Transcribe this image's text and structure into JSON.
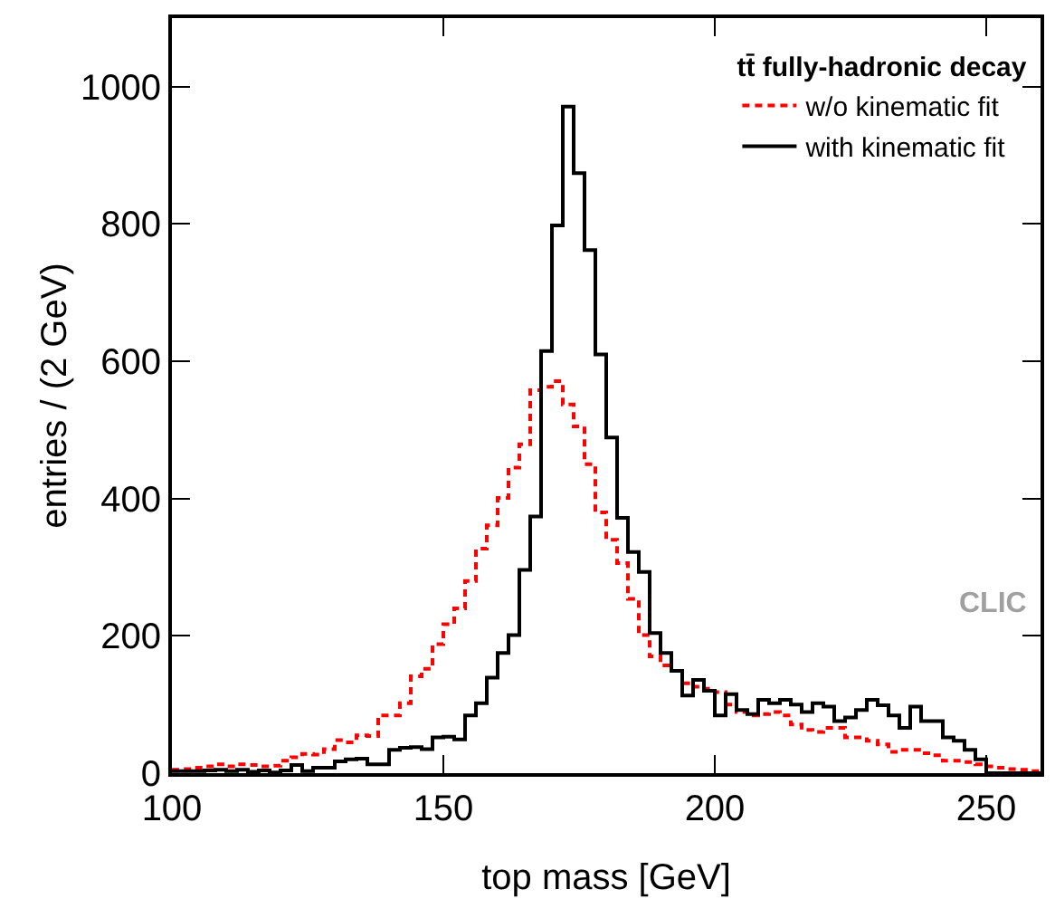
{
  "chart_data": {
    "type": "histogram",
    "xlabel": "top mass [GeV]",
    "ylabel": "entries / (2 GeV)",
    "legend_title": "tt̄ fully-hadronic decay",
    "annotations": [
      "CLIC"
    ],
    "bins": [
      100,
      102,
      104,
      106,
      108,
      110,
      112,
      114,
      116,
      118,
      120,
      122,
      124,
      126,
      128,
      130,
      132,
      134,
      136,
      138,
      140,
      142,
      144,
      146,
      148,
      150,
      152,
      154,
      156,
      158,
      160,
      162,
      164,
      166,
      168,
      170,
      172,
      174,
      176,
      178,
      180,
      182,
      184,
      186,
      188,
      190,
      192,
      194,
      196,
      198,
      200,
      202,
      204,
      206,
      208,
      210,
      212,
      214,
      216,
      218,
      220,
      222,
      224,
      226,
      228,
      230,
      232,
      234,
      236,
      238,
      240,
      242,
      244,
      246,
      248,
      250,
      252,
      254,
      256,
      258,
      260
    ],
    "series": [
      {
        "name": "w/o kinematic fit",
        "color": "#ff0000",
        "line_style": "dashed",
        "values": [
          5,
          6,
          8,
          10,
          13,
          10,
          13,
          12,
          10,
          11,
          18,
          23,
          28,
          27,
          35,
          48,
          45,
          55,
          54,
          84,
          84,
          102,
          141,
          152,
          188,
          217,
          240,
          280,
          327,
          361,
          401,
          445,
          479,
          558,
          563,
          571,
          537,
          505,
          450,
          380,
          340,
          306,
          254,
          201,
          170,
          157,
          149,
          131,
          126,
          123,
          118,
          100,
          89,
          84,
          86,
          89,
          84,
          71,
          63,
          60,
          66,
          66,
          52,
          52,
          47,
          42,
          31,
          34,
          34,
          29,
          26,
          18,
          18,
          16,
          13,
          10,
          8,
          6,
          5,
          3
        ]
      },
      {
        "name": "with kinematic fit",
        "color": "#000000",
        "line_style": "solid",
        "values": [
          3,
          3,
          3,
          4,
          5,
          3,
          5,
          2,
          4,
          1,
          4,
          12,
          3,
          8,
          8,
          17,
          20,
          21,
          13,
          13,
          34,
          37,
          38,
          35,
          52,
          53,
          49,
          84,
          102,
          139,
          175,
          201,
          296,
          374,
          615,
          798,
          971,
          874,
          762,
          610,
          489,
          372,
          322,
          293,
          204,
          175,
          149,
          113,
          136,
          120,
          84,
          115,
          92,
          86,
          107,
          102,
          107,
          100,
          89,
          102,
          97,
          76,
          81,
          92,
          107,
          99,
          84,
          66,
          97,
          76,
          76,
          52,
          47,
          34,
          20,
          0,
          0,
          0,
          0,
          0
        ]
      }
    ],
    "xlim": [
      100,
      260
    ],
    "ylim": [
      0,
      1100
    ],
    "xticks": [
      100,
      150,
      200,
      250
    ],
    "yticks": [
      0,
      200,
      400,
      600,
      800,
      1000
    ],
    "legend": "top right"
  }
}
